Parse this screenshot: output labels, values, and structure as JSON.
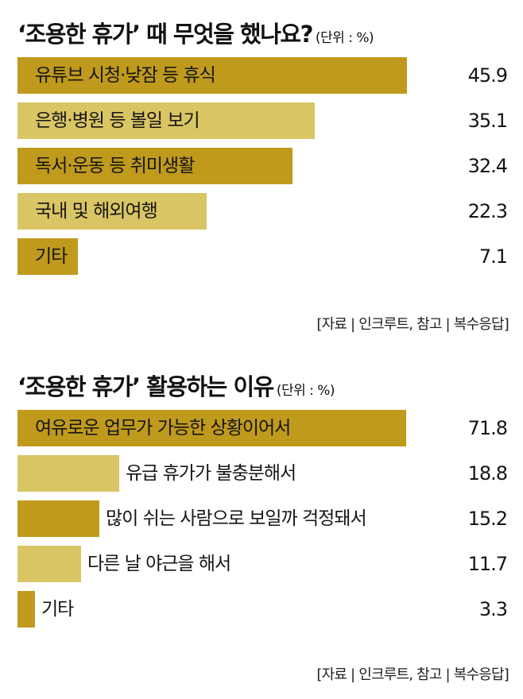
{
  "colors": {
    "dark_bar": "#c09a1c",
    "light_bar": "#dac564"
  },
  "chart_data": [
    {
      "type": "bar",
      "orientation": "horizontal",
      "title": "‘조용한 휴가’ 때 무엇을 했나요?",
      "unit": "(단위 : %)",
      "categories": [
        "유튜브 시청·낮잠 등 휴식",
        "은행·병원 등 볼일 보기",
        "독서·운동 등 취미생활",
        "국내 및 해외여행",
        "기타"
      ],
      "values": [
        45.9,
        35.1,
        32.4,
        22.3,
        7.1
      ],
      "value_labels": [
        "45.9",
        "35.1",
        "32.4",
        "22.3",
        "7.1"
      ],
      "label_position": "inside",
      "xlim": [
        0,
        60
      ],
      "source": "[자료 | 인크루트, 참고 | 복수응답]"
    },
    {
      "type": "bar",
      "orientation": "horizontal",
      "title": "‘조용한 휴가’ 활용하는 이유",
      "unit": "(단위 : %)",
      "categories": [
        "여유로운 업무가 가능한 상황이어서",
        "유급 휴가가 불충분해서",
        "많이 쉬는 사람으로 보일까 걱정돼서",
        "다른 날 야근을 해서",
        "기타"
      ],
      "values": [
        71.8,
        18.8,
        15.2,
        11.7,
        3.3
      ],
      "value_labels": [
        "71.8",
        "18.8",
        "15.2",
        "11.7",
        "3.3"
      ],
      "label_position": "inside-then-after",
      "xlim": [
        0,
        94
      ],
      "source": "[자료 | 인크루트, 참고 | 복수응답]"
    }
  ]
}
